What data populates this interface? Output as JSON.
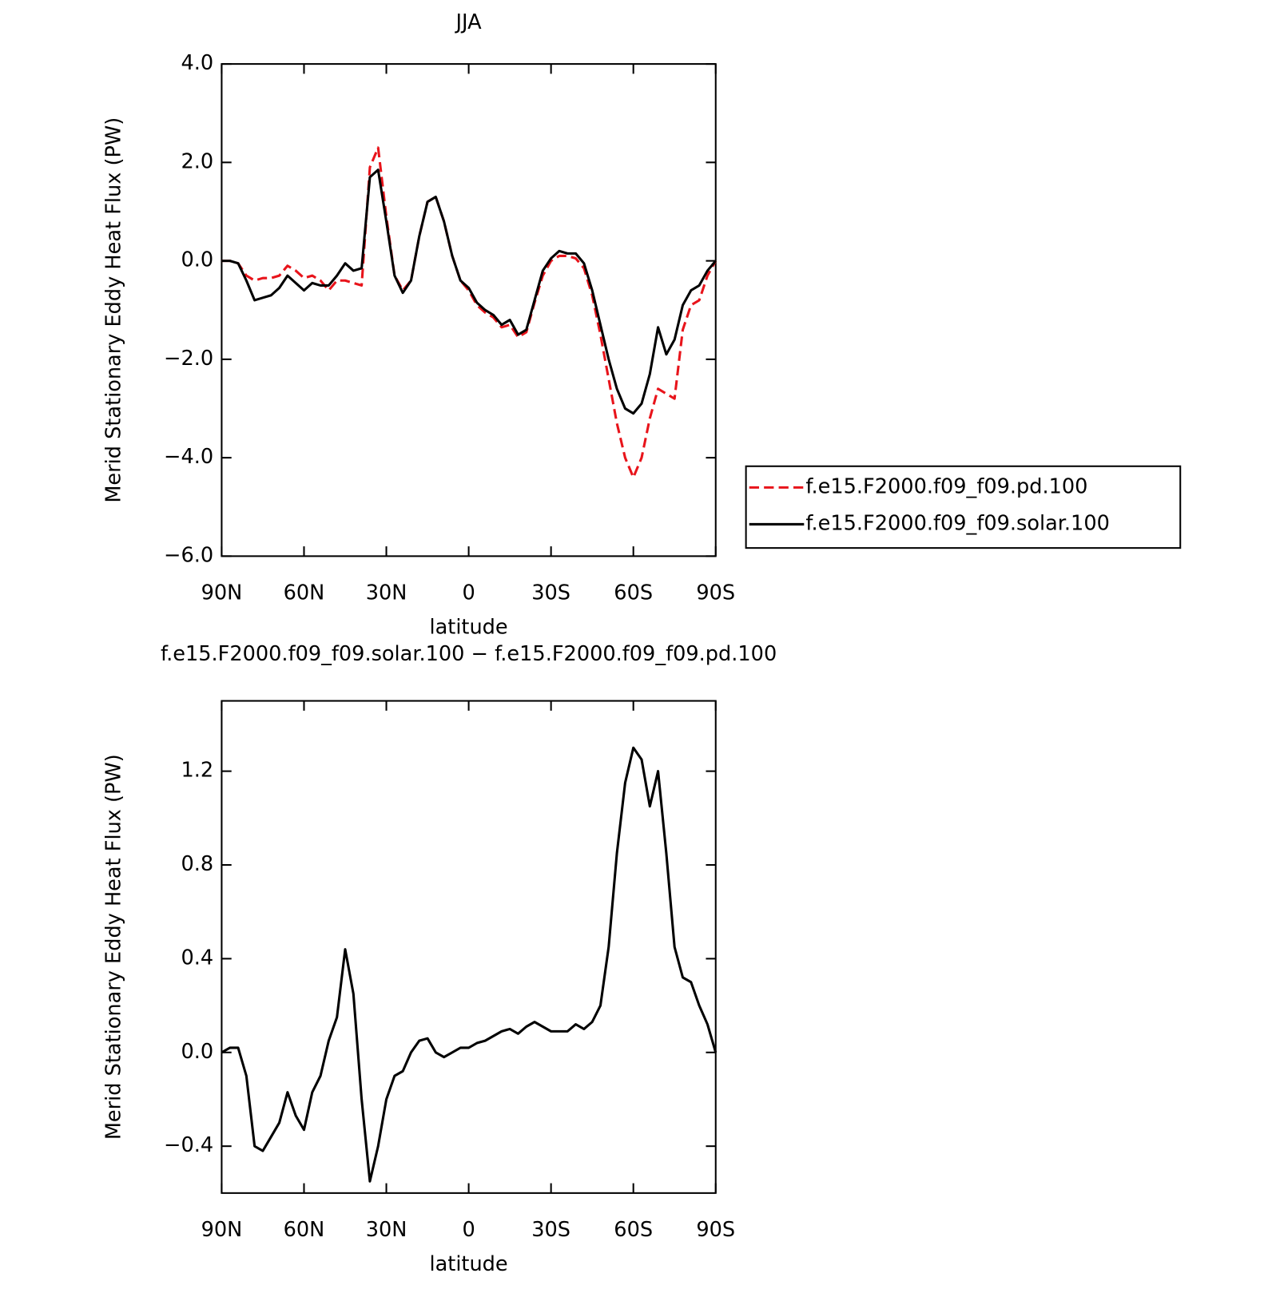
{
  "chart_data": [
    {
      "type": "line",
      "title": "JJA",
      "ylabel": "Merid Stationary Eddy Heat Flux (PW)",
      "xlabel": "latitude",
      "x": [
        90,
        87,
        84,
        81,
        78,
        75,
        72,
        69,
        66,
        63,
        60,
        57,
        54,
        51,
        48,
        45,
        42,
        39,
        36,
        33,
        30,
        27,
        24,
        21,
        18,
        15,
        12,
        9,
        6,
        3,
        0,
        -3,
        -6,
        -9,
        -12,
        -15,
        -18,
        -21,
        -24,
        -27,
        -30,
        -33,
        -36,
        -39,
        -42,
        -45,
        -48,
        -51,
        -54,
        -57,
        -60,
        -63,
        -66,
        -69,
        -72,
        -75,
        -78,
        -81,
        -84,
        -87,
        -90
      ],
      "xlim": [
        90,
        -90
      ],
      "xticks": [
        {
          "value": 90,
          "label": "90N"
        },
        {
          "value": 60,
          "label": "60N"
        },
        {
          "value": 30,
          "label": "30N"
        },
        0,
        {
          "value": -30,
          "label": "30S"
        },
        {
          "value": -60,
          "label": "60S"
        },
        {
          "value": -90,
          "label": "90S"
        }
      ],
      "ylim": [
        -6,
        4
      ],
      "yticks": [
        {
          "value": -6,
          "label": "−6.0"
        },
        {
          "value": -4,
          "label": "−4.0"
        },
        {
          "value": -2,
          "label": "−2.0"
        },
        {
          "value": 0,
          "label": "0.0"
        },
        {
          "value": 2,
          "label": "2.0"
        },
        {
          "value": 4,
          "label": "4.0"
        }
      ],
      "legend": "right",
      "series": [
        {
          "name": "f.e15.F2000.f09_f09.pd.100",
          "color": "#e8141b",
          "dashed": true,
          "values": [
            0,
            0,
            -0.05,
            -0.3,
            -0.4,
            -0.35,
            -0.35,
            -0.3,
            -0.1,
            -0.2,
            -0.35,
            -0.3,
            -0.4,
            -0.6,
            -0.4,
            -0.4,
            -0.45,
            -0.5,
            1.9,
            2.3,
            0.9,
            -0.3,
            -0.6,
            -0.4,
            0.5,
            1.2,
            1.3,
            0.8,
            0.1,
            -0.4,
            -0.6,
            -0.9,
            -1.05,
            -1.15,
            -1.35,
            -1.3,
            -1.55,
            -1.45,
            -0.85,
            -0.3,
            0,
            0.1,
            0.1,
            0.05,
            -0.15,
            -0.7,
            -1.5,
            -2.4,
            -3.3,
            -4.0,
            -4.4,
            -4.0,
            -3.2,
            -2.6,
            -2.7,
            -2.8,
            -1.4,
            -0.9,
            -0.8,
            -0.3,
            0
          ]
        },
        {
          "name": "f.e15.F2000.f09_f09.solar.100",
          "color": "#000000",
          "dashed": false,
          "values": [
            0,
            0,
            -0.05,
            -0.4,
            -0.8,
            -0.75,
            -0.7,
            -0.55,
            -0.3,
            -0.45,
            -0.6,
            -0.45,
            -0.5,
            -0.5,
            -0.3,
            -0.05,
            -0.2,
            -0.15,
            1.7,
            1.85,
            0.8,
            -0.3,
            -0.65,
            -0.4,
            0.5,
            1.2,
            1.3,
            0.8,
            0.1,
            -0.4,
            -0.55,
            -0.85,
            -1.0,
            -1.1,
            -1.3,
            -1.2,
            -1.5,
            -1.4,
            -0.8,
            -0.2,
            0.05,
            0.2,
            0.15,
            0.15,
            -0.05,
            -0.6,
            -1.3,
            -2.0,
            -2.6,
            -3.0,
            -3.1,
            -2.9,
            -2.3,
            -1.35,
            -1.9,
            -1.6,
            -0.9,
            -0.6,
            -0.5,
            -0.2,
            0
          ]
        }
      ]
    },
    {
      "type": "line",
      "title": "f.e15.F2000.f09_f09.solar.100 − f.e15.F2000.f09_f09.pd.100",
      "ylabel": "Merid Stationary Eddy Heat Flux (PW)",
      "xlabel": "latitude",
      "x": [
        90,
        87,
        84,
        81,
        78,
        75,
        72,
        69,
        66,
        63,
        60,
        57,
        54,
        51,
        48,
        45,
        42,
        39,
        36,
        33,
        30,
        27,
        24,
        21,
        18,
        15,
        12,
        9,
        6,
        3,
        0,
        -3,
        -6,
        -9,
        -12,
        -15,
        -18,
        -21,
        -24,
        -27,
        -30,
        -33,
        -36,
        -39,
        -42,
        -45,
        -48,
        -51,
        -54,
        -57,
        -60,
        -63,
        -66,
        -69,
        -72,
        -75,
        -78,
        -81,
        -84,
        -87,
        -90
      ],
      "xlim": [
        90,
        -90
      ],
      "xticks": [
        {
          "value": 90,
          "label": "90N"
        },
        {
          "value": 60,
          "label": "60N"
        },
        {
          "value": 30,
          "label": "30N"
        },
        0,
        {
          "value": -30,
          "label": "30S"
        },
        {
          "value": -60,
          "label": "60S"
        },
        {
          "value": -90,
          "label": "90S"
        }
      ],
      "ylim": [
        -0.6,
        1.5
      ],
      "yticks": [
        {
          "value": -0.4,
          "label": "−0.4"
        },
        {
          "value": 0,
          "label": "0.0"
        },
        0.4,
        0.8,
        1.2
      ],
      "series": [
        {
          "color": "#000000",
          "dashed": false,
          "values": [
            0,
            0.02,
            0.02,
            -0.1,
            -0.4,
            -0.42,
            -0.36,
            -0.3,
            -0.17,
            -0.27,
            -0.33,
            -0.17,
            -0.1,
            0.05,
            0.15,
            0.44,
            0.25,
            -0.2,
            -0.55,
            -0.4,
            -0.2,
            -0.1,
            -0.08,
            0,
            0.05,
            0.06,
            0,
            -0.02,
            0,
            0.02,
            0.02,
            0.04,
            0.05,
            0.07,
            0.09,
            0.1,
            0.08,
            0.11,
            0.13,
            0.11,
            0.09,
            0.09,
            0.09,
            0.12,
            0.1,
            0.13,
            0.2,
            0.45,
            0.85,
            1.15,
            1.3,
            1.25,
            1.05,
            1.2,
            0.85,
            0.45,
            0.32,
            0.3,
            0.2,
            0.12,
            0
          ]
        }
      ]
    }
  ]
}
